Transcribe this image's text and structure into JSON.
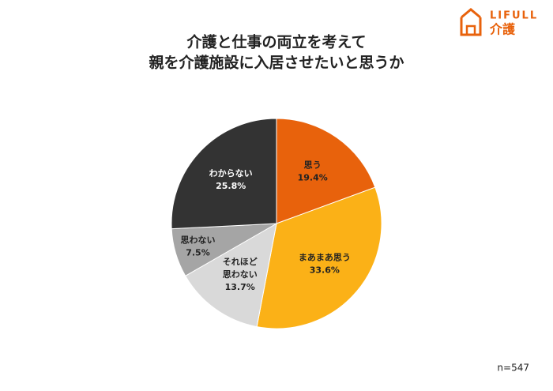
{
  "logo": {
    "brand": "LIFULL",
    "sub": "介護"
  },
  "chart_data": {
    "type": "pie",
    "title": [
      "介護と仕事の両立を考えて",
      "親を介護施設に入居させたいと思うか"
    ],
    "categories": [
      "思う",
      "まあまあ思う",
      "それほど\n思わない",
      "思わない",
      "わからない"
    ],
    "values": [
      19.4,
      33.6,
      13.7,
      7.5,
      25.8
    ],
    "value_labels": [
      "19.4%",
      "33.6%",
      "13.7%",
      "7.5%",
      "25.8%"
    ],
    "colors": [
      "#e8620c",
      "#fbb117",
      "#d9d9d9",
      "#a5a5a5",
      "#333333"
    ],
    "note": "n=547"
  }
}
